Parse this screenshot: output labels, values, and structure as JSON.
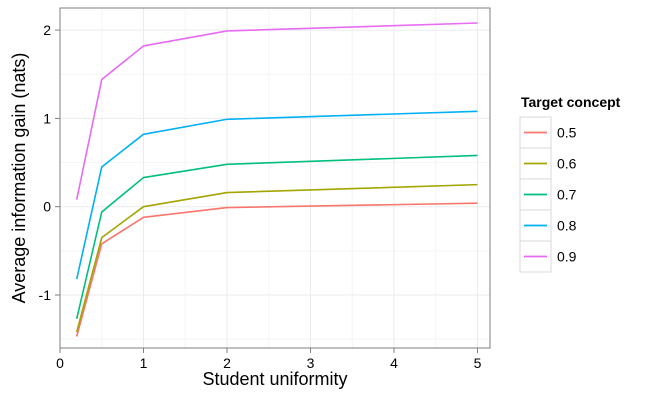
{
  "chart_data": {
    "type": "line",
    "xlabel": "Student uniformity",
    "ylabel": "Average information gain (nats)",
    "xlim": [
      0,
      5.15
    ],
    "ylim": [
      -1.6,
      2.25
    ],
    "x_ticks": [
      0,
      1,
      2,
      3,
      4,
      5
    ],
    "y_ticks": [
      -1,
      0,
      1,
      2
    ],
    "grid": true,
    "legend_title": "Target concept",
    "legend_position": "right",
    "x": [
      0.2,
      0.5,
      1,
      2,
      5
    ],
    "series": [
      {
        "name": "0.5",
        "color": "#F8766D",
        "values": [
          -1.47,
          -0.42,
          -0.12,
          -0.01,
          0.04
        ]
      },
      {
        "name": "0.6",
        "color": "#A3A500",
        "values": [
          -1.42,
          -0.35,
          0.0,
          0.16,
          0.25
        ]
      },
      {
        "name": "0.7",
        "color": "#00BF7D",
        "values": [
          -1.27,
          -0.06,
          0.33,
          0.48,
          0.58
        ]
      },
      {
        "name": "0.8",
        "color": "#00B0F6",
        "values": [
          -0.82,
          0.45,
          0.82,
          0.99,
          1.08
        ]
      },
      {
        "name": "0.9",
        "color": "#E76BF3",
        "values": [
          0.08,
          1.44,
          1.82,
          1.99,
          2.08
        ]
      }
    ]
  }
}
